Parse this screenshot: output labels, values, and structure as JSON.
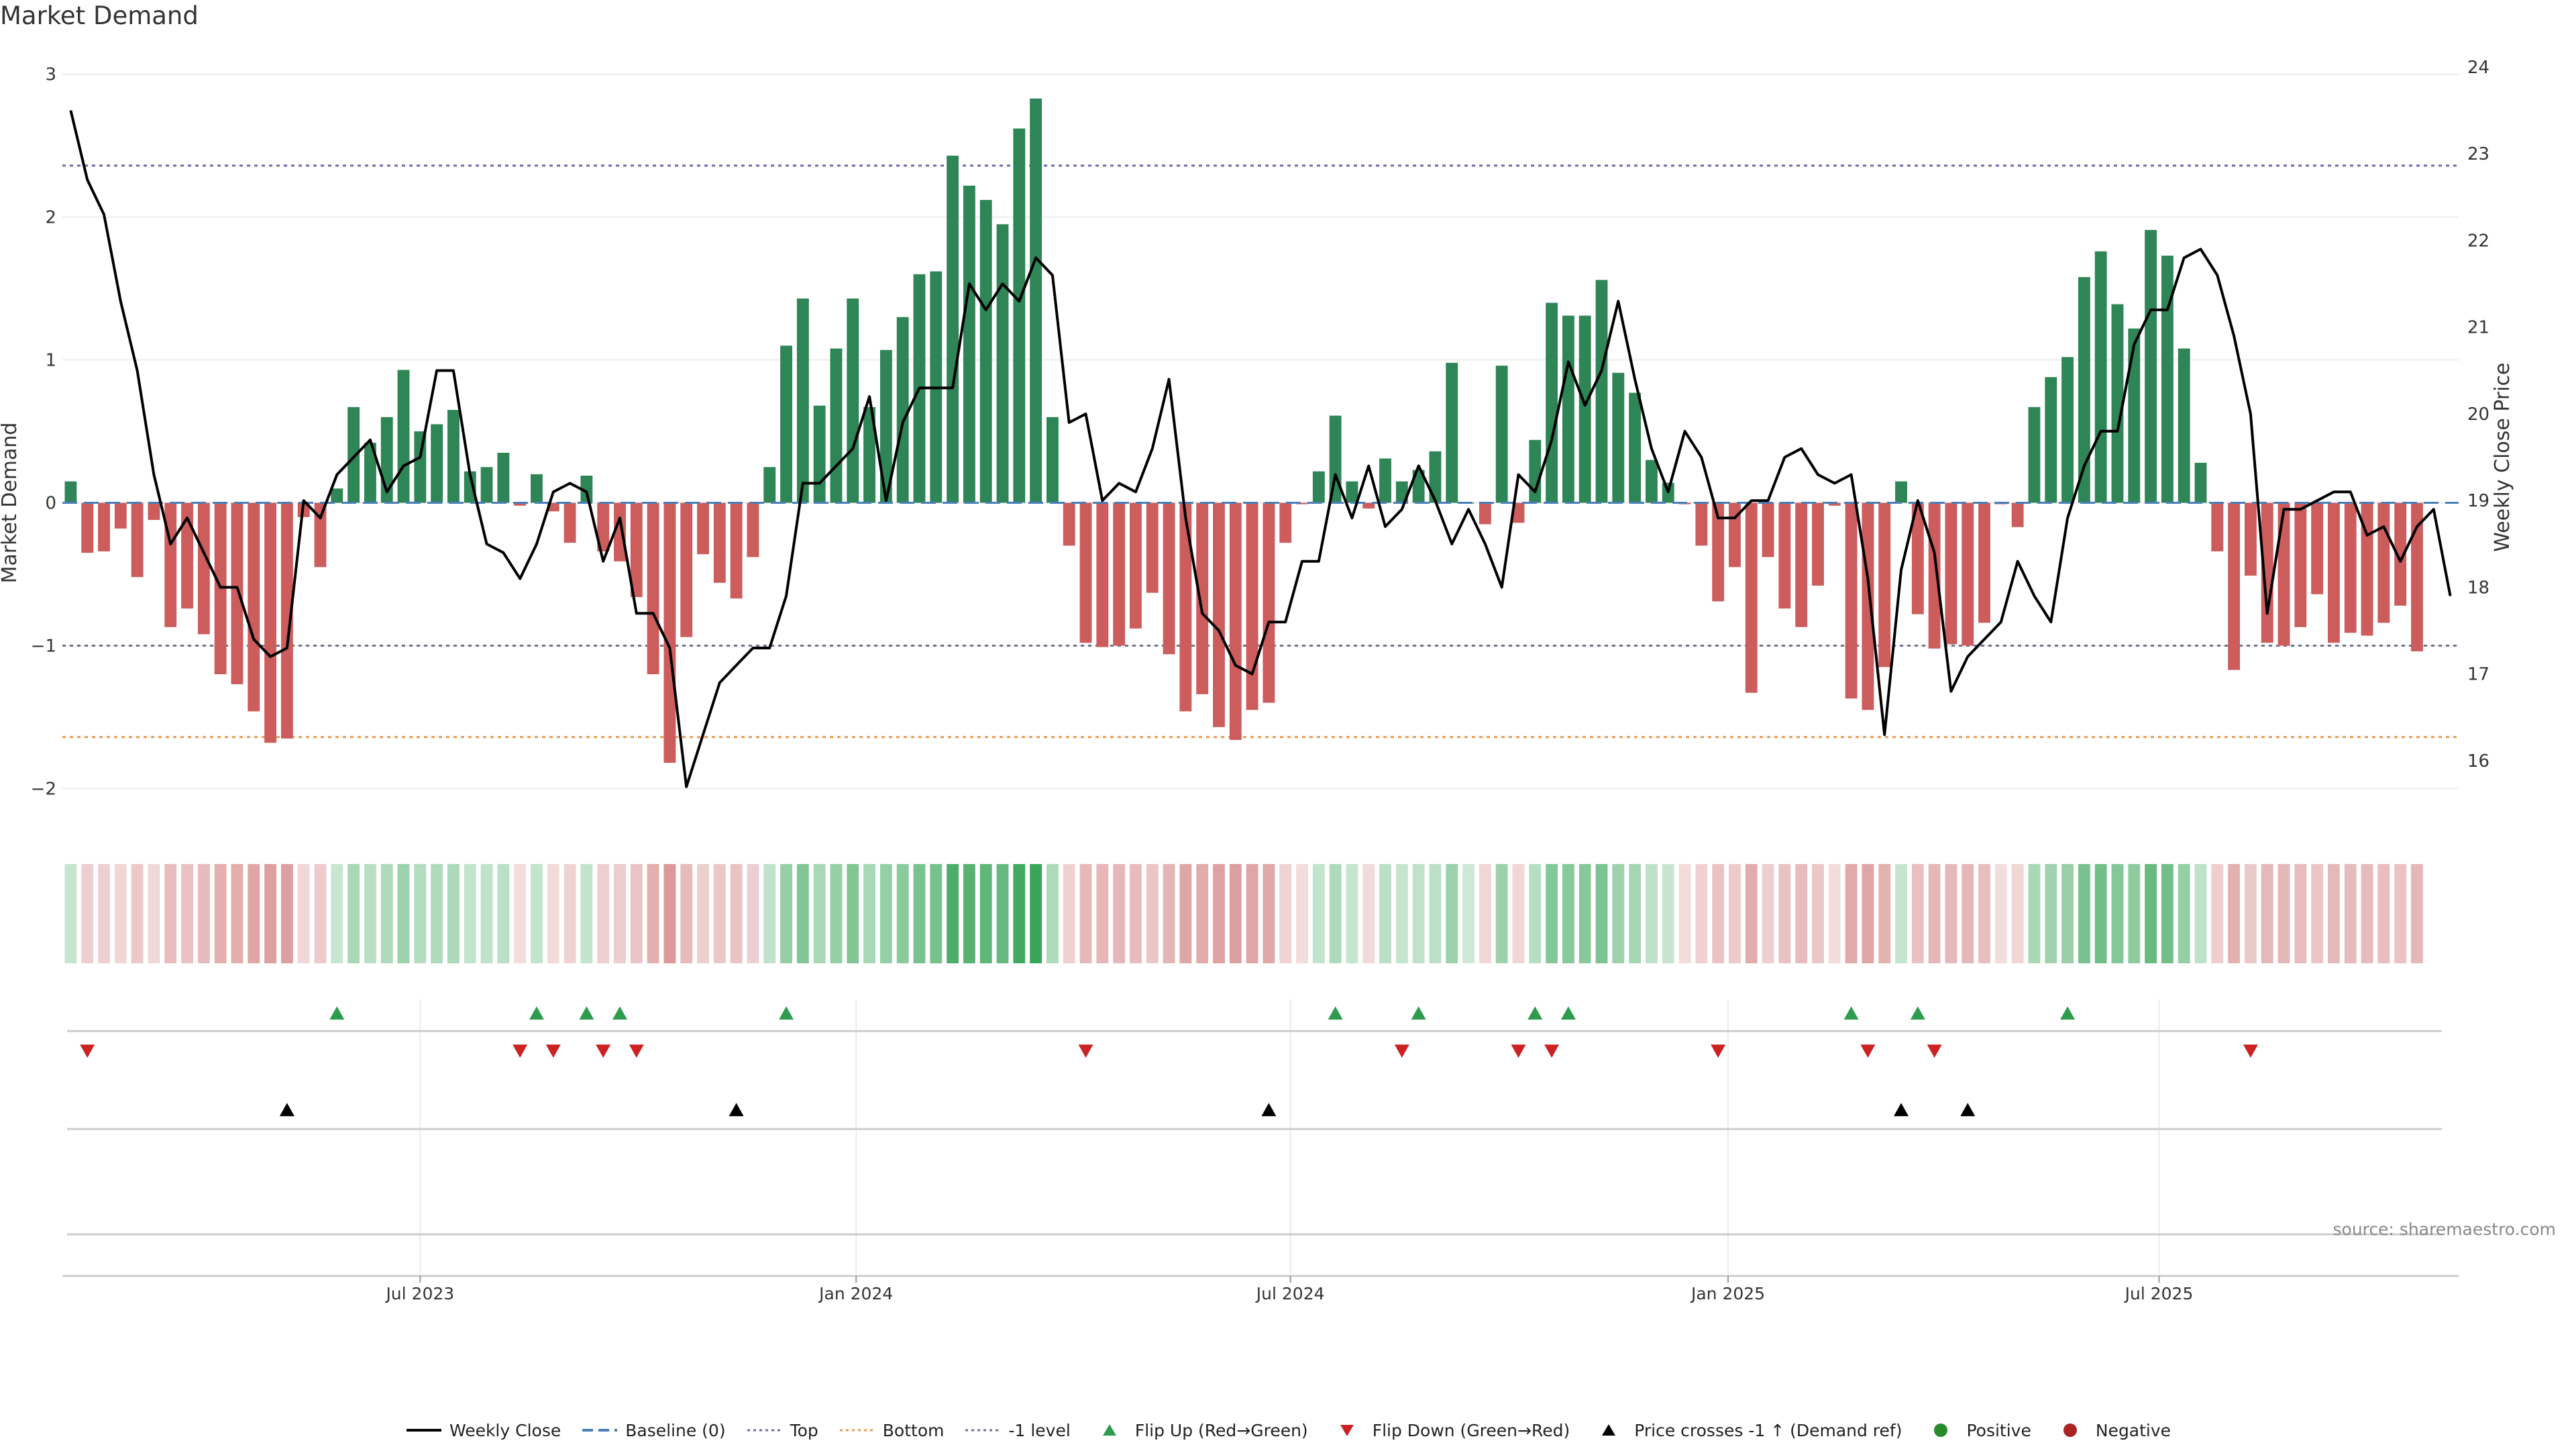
{
  "title": "Market Demand",
  "source": "source: sharemaestro.com",
  "colors": {
    "positive": "#2e8555",
    "negative": "#cd5c5c",
    "price": "#000000",
    "top": "#6a6aaa",
    "bottom": "#e89a50",
    "minus_one": "#707090",
    "baseline": "#4a7fb5",
    "flip_up": "#2e9c4e",
    "flip_down": "#cc2222",
    "cross": "#000000",
    "pos_dot": "#2a8a2a",
    "neg_dot": "#aa2222"
  },
  "legend": [
    {
      "label": "Weekly Close",
      "symbol": "line-solid",
      "color": "#000000"
    },
    {
      "label": "Baseline (0)",
      "symbol": "line-dash",
      "color": "#4a7fb5"
    },
    {
      "label": "Top",
      "symbol": "line-dot",
      "color": "#6a6aaa"
    },
    {
      "label": "Bottom",
      "symbol": "line-dot",
      "color": "#e89a50"
    },
    {
      "label": "-1 level",
      "symbol": "line-dot",
      "color": "#707090"
    },
    {
      "label": "Flip Up (Red→Green)",
      "symbol": "tri-up",
      "color": "#2e9c4e"
    },
    {
      "label": "Flip Down (Green→Red)",
      "symbol": "tri-down",
      "color": "#cc2222"
    },
    {
      "label": "Price crosses -1 ↑ (Demand ref)",
      "symbol": "tri-up",
      "color": "#000000"
    },
    {
      "label": "Positive",
      "symbol": "dot",
      "color": "#2a8a2a"
    },
    {
      "label": "Negative",
      "symbol": "dot",
      "color": "#aa2222"
    }
  ],
  "chart_data": {
    "type": "bar",
    "title": "Market Demand",
    "ylabel": "Market Demand",
    "y2label": "Weekly Close Price",
    "ylim": [
      -2.2,
      3.05
    ],
    "y2lim": [
      15.35,
      24.0
    ],
    "yticks": [
      -2,
      -1,
      0,
      1,
      2,
      3
    ],
    "y2ticks": [
      16,
      17,
      18,
      19,
      20,
      21,
      22,
      23,
      24
    ],
    "top_level": 2.36,
    "bottom_level": -1.64,
    "minus_one_level": -1.0,
    "baseline": 0,
    "xticks": [
      {
        "label": "Jul 2023",
        "week": 21.5
      },
      {
        "label": "Jan 2024",
        "week": 47.7
      },
      {
        "label": "Jul 2024",
        "week": 73.8
      },
      {
        "label": "Jan 2025",
        "week": 100.1
      },
      {
        "label": "Jul 2025",
        "week": 126.0
      }
    ],
    "weeks": 144,
    "demand": [
      0.15,
      -0.35,
      -0.34,
      -0.18,
      -0.52,
      -0.12,
      -0.87,
      -0.74,
      -0.92,
      -1.2,
      -1.27,
      -1.46,
      -1.68,
      -1.65,
      -0.1,
      -0.45,
      0.1,
      0.67,
      0.42,
      0.6,
      0.93,
      0.5,
      0.55,
      0.65,
      0.22,
      0.25,
      0.35,
      -0.02,
      0.2,
      -0.06,
      -0.28,
      0.19,
      -0.34,
      -0.41,
      -0.66,
      -1.2,
      -1.82,
      -0.94,
      -0.36,
      -0.56,
      -0.67,
      -0.38,
      0.25,
      1.1,
      1.43,
      0.68,
      1.08,
      1.43,
      0.67,
      1.07,
      1.3,
      1.6,
      1.62,
      2.43,
      2.22,
      2.12,
      1.95,
      2.62,
      2.83,
      0.6,
      -0.3,
      -0.98,
      -1.01,
      -1.0,
      -0.88,
      -0.63,
      -1.06,
      -1.46,
      -1.34,
      -1.57,
      -1.66,
      -1.45,
      -1.4,
      -0.28,
      -0.01,
      0.22,
      0.61,
      0.15,
      -0.04,
      0.31,
      0.15,
      0.23,
      0.36,
      0.98,
      0.0,
      -0.15,
      0.96,
      -0.14,
      0.44,
      1.4,
      1.31,
      1.31,
      1.56,
      0.91,
      0.77,
      0.3,
      0.14,
      -0.01,
      -0.3,
      -0.69,
      -0.45,
      -1.33,
      -0.38,
      -0.74,
      -0.87,
      -0.58,
      -0.02,
      -1.37,
      -1.45,
      -1.15,
      0.15,
      -0.78,
      -1.02,
      -0.99,
      -1.0,
      -0.84,
      -0.01,
      -0.17,
      0.67,
      0.88,
      1.02,
      1.58,
      1.76,
      1.39,
      1.22,
      1.91,
      1.73,
      1.08,
      0.28,
      -0.34,
      -1.17,
      -0.51,
      -0.98,
      -1.0,
      -0.87,
      -0.64,
      -0.98,
      -0.91,
      -0.93,
      -0.84,
      -0.72,
      -1.04
    ],
    "price": [
      23.5,
      22.7,
      22.3,
      21.3,
      20.5,
      19.3,
      18.5,
      18.8,
      18.4,
      18.0,
      18.0,
      17.4,
      17.2,
      17.3,
      19.0,
      18.8,
      19.3,
      19.5,
      19.7,
      19.1,
      19.4,
      19.5,
      20.5,
      20.5,
      19.3,
      18.5,
      18.4,
      18.1,
      18.5,
      19.1,
      19.2,
      19.1,
      18.3,
      18.8,
      17.7,
      17.7,
      17.3,
      15.7,
      16.3,
      16.9,
      17.1,
      17.3,
      17.3,
      17.9,
      19.2,
      19.2,
      19.4,
      19.6,
      20.2,
      19.0,
      19.9,
      20.3,
      20.3,
      20.3,
      21.5,
      21.2,
      21.5,
      21.3,
      21.8,
      21.6,
      19.9,
      20.0,
      19.0,
      19.2,
      19.1,
      19.6,
      20.4,
      18.8,
      17.7,
      17.5,
      17.1,
      17.0,
      17.6,
      17.6,
      18.3,
      18.3,
      19.3,
      18.8,
      19.4,
      18.7,
      18.9,
      19.4,
      19.0,
      18.5,
      18.9,
      18.5,
      18.0,
      19.3,
      19.1,
      19.7,
      20.6,
      20.1,
      20.5,
      21.3,
      20.4,
      19.6,
      19.1,
      19.8,
      19.5,
      18.8,
      18.8,
      19.0,
      19.0,
      19.5,
      19.6,
      19.3,
      19.2,
      19.3,
      18.1,
      16.3,
      18.2,
      19.0,
      18.4,
      16.8,
      17.2,
      17.4,
      17.6,
      18.3,
      17.9,
      17.6,
      18.8,
      19.4,
      19.8,
      19.8,
      20.8,
      21.2,
      21.2,
      21.8,
      21.9,
      21.6,
      20.9,
      20.0,
      17.7,
      18.9,
      18.9,
      19.0,
      19.1,
      19.1,
      18.6,
      18.7,
      18.3,
      18.7,
      18.9,
      17.9
    ],
    "flip_up_weeks": [
      16,
      28,
      31,
      33,
      43,
      76,
      81,
      88,
      90,
      107,
      111,
      120
    ],
    "flip_down_weeks": [
      1,
      27,
      29,
      32,
      34,
      61,
      80,
      87,
      89,
      99,
      108,
      112,
      131
    ],
    "price_cross_weeks": [
      13,
      40,
      72,
      110,
      114
    ]
  }
}
